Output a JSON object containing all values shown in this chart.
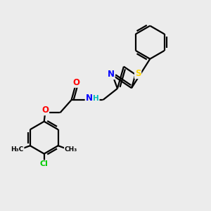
{
  "bg_color": "#ececec",
  "atom_colors": {
    "C": "#000000",
    "N": "#0000FF",
    "O": "#FF0000",
    "S": "#FFD700",
    "Cl": "#00CC00",
    "H": "#00BBBB"
  },
  "bond_color": "#000000",
  "bond_width": 1.6
}
